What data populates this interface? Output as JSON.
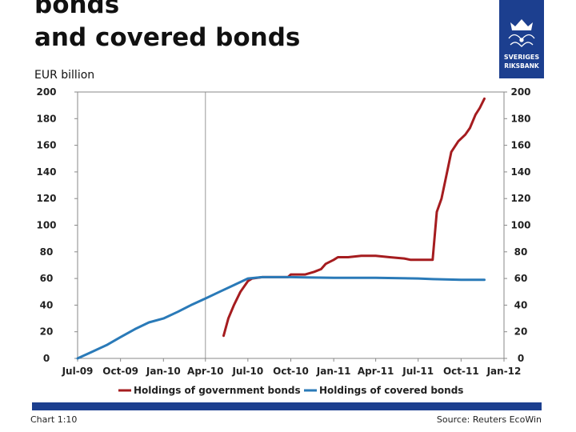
{
  "title": {
    "line1": "bonds",
    "line2": "and covered bonds"
  },
  "logo": {
    "text1": "SVERIGES",
    "text2": "RIKSBANK",
    "color": "#1c3f8f",
    "icon": "crown-crest-icon"
  },
  "unit": "EUR billion",
  "footer": {
    "chart_number": "Chart 1:10",
    "source": "Source: Reuters EcoWin",
    "bar_color": "#1c3f8f"
  },
  "chart_data": {
    "type": "line",
    "x_ticks": [
      "Jul-09",
      "Oct-09",
      "Jan-10",
      "Apr-10",
      "Jul-10",
      "Oct-10",
      "Jan-11",
      "Apr-11",
      "Jul-11",
      "Oct-11",
      "Jan-12"
    ],
    "ylim": [
      0,
      200
    ],
    "y_ticks": [
      0,
      20,
      40,
      60,
      80,
      100,
      120,
      140,
      160,
      180,
      200
    ],
    "right_axis_mirrored": true,
    "grid": "vertical line at Apr-10",
    "legend_position": "bottom",
    "series": [
      {
        "name": "Holdings of government bonds",
        "color": "#a51c1f",
        "points": [
          [
            "2010-05-10",
            17
          ],
          [
            "2010-05-20",
            30
          ],
          [
            "2010-06-01",
            40
          ],
          [
            "2010-06-15",
            50
          ],
          [
            "2010-07-01",
            58
          ],
          [
            "2010-07-10",
            60
          ],
          [
            "2010-08-01",
            61
          ],
          [
            "2010-09-01",
            61
          ],
          [
            "2010-09-25",
            61
          ],
          [
            "2010-10-01",
            63
          ],
          [
            "2010-11-01",
            63
          ],
          [
            "2010-11-20",
            65
          ],
          [
            "2010-12-05",
            67
          ],
          [
            "2010-12-15",
            71
          ],
          [
            "2011-01-01",
            74
          ],
          [
            "2011-01-10",
            76
          ],
          [
            "2011-02-01",
            76
          ],
          [
            "2011-03-01",
            77
          ],
          [
            "2011-04-01",
            77
          ],
          [
            "2011-05-01",
            76
          ],
          [
            "2011-06-01",
            75
          ],
          [
            "2011-06-15",
            74
          ],
          [
            "2011-07-15",
            74
          ],
          [
            "2011-08-01",
            74
          ],
          [
            "2011-08-05",
            90
          ],
          [
            "2011-08-10",
            110
          ],
          [
            "2011-08-20",
            120
          ],
          [
            "2011-09-01",
            140
          ],
          [
            "2011-09-10",
            155
          ],
          [
            "2011-09-25",
            163
          ],
          [
            "2011-10-10",
            168
          ],
          [
            "2011-10-20",
            173
          ],
          [
            "2011-11-01",
            183
          ],
          [
            "2011-11-10",
            188
          ],
          [
            "2011-11-20",
            195
          ]
        ]
      },
      {
        "name": "Holdings of covered bonds",
        "color": "#2a7ab8",
        "points": [
          [
            "2009-07-01",
            0
          ],
          [
            "2009-08-01",
            5
          ],
          [
            "2009-09-01",
            10
          ],
          [
            "2009-10-01",
            16
          ],
          [
            "2009-11-01",
            22
          ],
          [
            "2009-12-01",
            27
          ],
          [
            "2010-01-01",
            30
          ],
          [
            "2010-02-01",
            35
          ],
          [
            "2010-03-01",
            40
          ],
          [
            "2010-04-01",
            45
          ],
          [
            "2010-05-01",
            50
          ],
          [
            "2010-06-01",
            55
          ],
          [
            "2010-07-01",
            60
          ],
          [
            "2010-08-01",
            61
          ],
          [
            "2010-10-01",
            61
          ],
          [
            "2011-01-01",
            60.5
          ],
          [
            "2011-04-01",
            60.5
          ],
          [
            "2011-07-01",
            60
          ],
          [
            "2011-08-01",
            59.5
          ],
          [
            "2011-10-01",
            59
          ],
          [
            "2011-11-20",
            59
          ]
        ]
      }
    ]
  }
}
